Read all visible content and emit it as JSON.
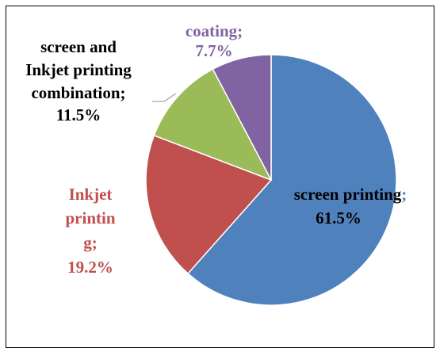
{
  "chart_data": {
    "type": "pie",
    "title": "",
    "legend": "none",
    "series": [
      {
        "slices": [
          {
            "name": "screen printing",
            "value": 61.5,
            "percent_label": "61.5%",
            "color": "#4F81BD"
          },
          {
            "name": "Inkjet printing",
            "value": 19.2,
            "percent_label": "19.2%",
            "color": "#C0504D"
          },
          {
            "name": "screen and Inkjet printing combination",
            "value": 11.5,
            "percent_label": "11.5%",
            "color": "#9BBB59"
          },
          {
            "name": "coating",
            "value": 7.7,
            "percent_label": "7.7%",
            "color": "#8064A2"
          }
        ]
      }
    ],
    "data_labels": {
      "screen_printing": [
        "screen printing",
        ";",
        "61.5%"
      ],
      "inkjet_printing": [
        "Inkjet",
        "printin",
        "g;",
        "19.2%"
      ],
      "combination": [
        "screen and",
        "Inkjet printing",
        "combination;",
        "11.5%"
      ],
      "coating": [
        "coating;",
        "7.7%"
      ]
    }
  }
}
